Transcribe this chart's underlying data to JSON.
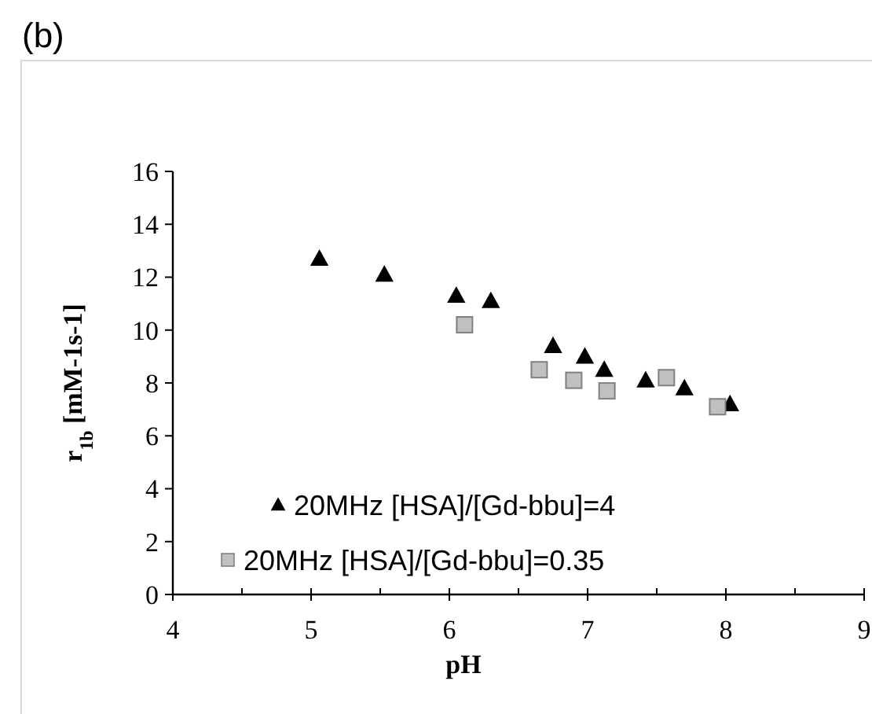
{
  "chart_data": {
    "type": "scatter",
    "title": "(b)",
    "xlabel": "pH",
    "ylabel": "r$_{1b}$ [mM-1s-1]",
    "xlim": [
      4,
      9
    ],
    "xticks": [
      4,
      5,
      6,
      7,
      8,
      9
    ],
    "ylim": [
      0,
      16
    ],
    "yticks": [
      0,
      2,
      4,
      6,
      8,
      10,
      12,
      14,
      16
    ],
    "grid": false,
    "legend": "bottom left",
    "series": [
      {
        "name": "20MHz [HSA]/[Gd-bbu]=4",
        "color": "#000000",
        "marker": "triangle",
        "x": [
          5.06,
          5.53,
          6.05,
          6.3,
          6.75,
          6.98,
          7.12,
          7.42,
          7.7,
          8.03
        ],
        "values": [
          12.7,
          12.1,
          11.3,
          11.1,
          9.4,
          9.0,
          8.5,
          8.1,
          7.8,
          7.2
        ]
      },
      {
        "name": "20MHz [HSA]/[Gd-bbu]=0.35",
        "color": "#c0c0c0",
        "marker": "square",
        "x": [
          6.11,
          6.65,
          6.9,
          7.14,
          7.57,
          7.94
        ],
        "values": [
          10.2,
          8.5,
          8.1,
          7.7,
          8.2,
          7.1
        ]
      }
    ]
  }
}
